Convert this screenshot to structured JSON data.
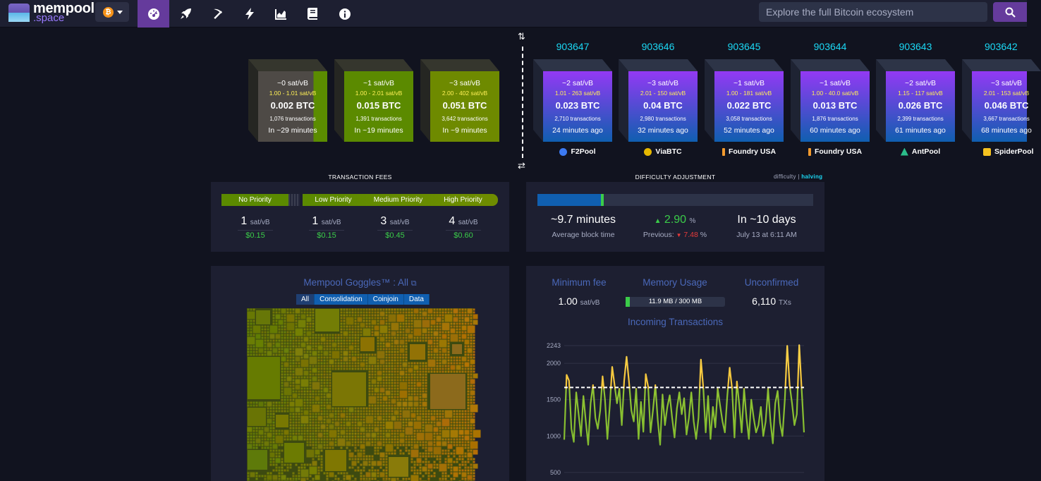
{
  "brand": {
    "line1": "mempool",
    "line2": ".space"
  },
  "network": {
    "icon": "bitcoin-icon",
    "symbol": "₿"
  },
  "nav": [
    {
      "name": "dashboard",
      "icon": "dashboard-icon"
    },
    {
      "name": "accelerator",
      "icon": "rocket-icon"
    },
    {
      "name": "mining",
      "icon": "pickaxe-icon"
    },
    {
      "name": "lightning",
      "icon": "bolt-icon"
    },
    {
      "name": "graphs",
      "icon": "chart-icon"
    },
    {
      "name": "docs",
      "icon": "book-icon"
    },
    {
      "name": "about",
      "icon": "info-icon"
    }
  ],
  "search": {
    "placeholder": "Explore the full Bitcoin ecosystem"
  },
  "mempool_blocks": [
    {
      "fee": "~0 sat/vB",
      "range": "1.00 - 1.01 sat/vB",
      "btc": "0.002 BTC",
      "txs": "1,076 transactions",
      "time": "In ~29 minutes"
    },
    {
      "fee": "~1 sat/vB",
      "range": "1.00 - 2.01 sat/vB",
      "btc": "0.015 BTC",
      "txs": "1,391 transactions",
      "time": "In ~19 minutes"
    },
    {
      "fee": "~3 sat/vB",
      "range": "2.00 - 402 sat/vB",
      "btc": "0.051 BTC",
      "txs": "3,642 transactions",
      "time": "In ~9 minutes"
    }
  ],
  "blocks": [
    {
      "height": "903647",
      "fee": "~2 sat/vB",
      "range": "1.01 - 263 sat/vB",
      "btc": "0.023 BTC",
      "txs": "2,710 transactions",
      "time": "24 minutes ago",
      "pool": "F2Pool",
      "pool_color": "#3c7af2"
    },
    {
      "height": "903646",
      "fee": "~3 sat/vB",
      "range": "2.01 - 150 sat/vB",
      "btc": "0.04 BTC",
      "txs": "2,980 transactions",
      "time": "32 minutes ago",
      "pool": "ViaBTC",
      "pool_color": "#e6b800"
    },
    {
      "height": "903645",
      "fee": "~1 sat/vB",
      "range": "1.00 - 181 sat/vB",
      "btc": "0.022 BTC",
      "txs": "3,058 transactions",
      "time": "52 minutes ago",
      "pool": "Foundry USA",
      "pool_color": "#f29a2e"
    },
    {
      "height": "903644",
      "fee": "~1 sat/vB",
      "range": "1.00 - 40.0 sat/vB",
      "btc": "0.013 BTC",
      "txs": "1,876 transactions",
      "time": "60 minutes ago",
      "pool": "Foundry USA",
      "pool_color": "#f29a2e"
    },
    {
      "height": "903643",
      "fee": "~2 sat/vB",
      "range": "1.15 - 117 sat/vB",
      "btc": "0.026 BTC",
      "txs": "2,399 transactions",
      "time": "61 minutes ago",
      "pool": "AntPool",
      "pool_color": "#2bbd8a"
    },
    {
      "height": "903642",
      "fee": "~3 sat/vB",
      "range": "2.01 - 153 sat/vB",
      "btc": "0.046 BTC",
      "txs": "3,667 transactions",
      "time": "68 minutes ago",
      "pool": "SpiderPool",
      "pool_color": "#f5c220"
    }
  ],
  "fees": {
    "title": "TRANSACTION FEES",
    "labels": {
      "none": "No Priority",
      "low": "Low Priority",
      "medium": "Medium Priority",
      "high": "High Priority"
    },
    "values": [
      {
        "v": "1",
        "u": "sat/vB",
        "usd": "$0.15"
      },
      {
        "v": "1",
        "u": "sat/vB",
        "usd": "$0.15"
      },
      {
        "v": "3",
        "u": "sat/vB",
        "usd": "$0.45"
      },
      {
        "v": "4",
        "u": "sat/vB",
        "usd": "$0.60"
      }
    ]
  },
  "difficulty": {
    "title": "DIFFICULTY ADJUSTMENT",
    "toggle_a": "difficulty",
    "toggle_sep": "|",
    "toggle_b": "halving",
    "progress": 0.24,
    "avg_time": "~9.7 minutes",
    "avg_label": "Average block time",
    "change": "2.90",
    "change_unit": "%",
    "prev_label": "Previous:",
    "prev_value": "7.48",
    "prev_unit": "%",
    "eta": "In ~10 days",
    "eta_date": "July 13 at 6:11 AM"
  },
  "goggles": {
    "title": "Mempool Goggles™ : All",
    "tabs": [
      "All",
      "Consolidation",
      "Coinjoin",
      "Data"
    ]
  },
  "stats": {
    "min_fee_title": "Minimum fee",
    "min_fee": "1.00",
    "min_fee_unit": "sat/vB",
    "memory_title": "Memory Usage",
    "memory": "11.9 MB / 300 MB",
    "memory_fraction": 0.04,
    "unconfirmed_title": "Unconfirmed",
    "unconfirmed": "6,110",
    "unconfirmed_unit": "TXs"
  },
  "chart_data": {
    "type": "line",
    "title": "Incoming Transactions",
    "yticks": [
      "2243",
      "2000",
      "1500",
      "1000",
      "500"
    ],
    "ylim": [
      450,
      2243
    ],
    "threshold": 1667,
    "values": [
      950,
      1840,
      1760,
      1100,
      920,
      1600,
      1300,
      1000,
      1550,
      1200,
      880,
      1450,
      1700,
      1250,
      1100,
      1350,
      1820,
      1500,
      960,
      1420,
      1950,
      1700,
      1450,
      1650,
      1150,
      1760,
      2090,
      1750,
      1350,
      1200,
      1650,
      960,
      1470,
      1060,
      1850,
      1680,
      1050,
      1350,
      1700,
      1220,
      880,
      1570,
      1150,
      1400,
      1560,
      1250,
      980,
      1380,
      1600,
      1300,
      1520,
      1020,
      1250,
      1600,
      1200,
      960,
      1250,
      2050,
      1660,
      1050,
      1550,
      960,
      1400,
      1120,
      1650,
      1420,
      1200,
      1050,
      1550,
      1940,
      1650,
      980,
      1750,
      1430,
      1050,
      1650,
      1250,
      960,
      1500,
      1250,
      1050,
      1150,
      1400,
      1000,
      1200,
      1650,
      1200,
      900,
      1450,
      1620,
      1180,
      1000,
      1500,
      2240,
      1700,
      1450,
      1150,
      1300,
      2250,
      1650,
      1050
    ]
  }
}
